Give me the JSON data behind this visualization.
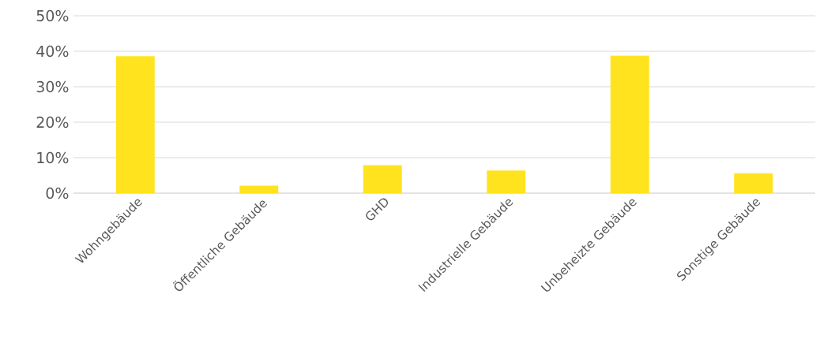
{
  "chart_data": {
    "type": "bar",
    "categories": [
      "Wohngebäude",
      "Öffentliche Gebäude",
      "GHD",
      "Industrielle Gebäude",
      "Unbeheizte Gebäude",
      "Sonstige Gebäude"
    ],
    "values": [
      38.6,
      2.1,
      7.9,
      6.4,
      38.8,
      5.6
    ],
    "color": "#ffe31f",
    "ylim": [
      0,
      50
    ],
    "yticks": [
      {
        "value": 0,
        "label": "0%"
      },
      {
        "value": 10,
        "label": "10%"
      },
      {
        "value": 20,
        "label": "20%"
      },
      {
        "value": 30,
        "label": "30%"
      },
      {
        "value": 40,
        "label": "40%"
      },
      {
        "value": 50,
        "label": "50%"
      }
    ],
    "grid": "y"
  }
}
